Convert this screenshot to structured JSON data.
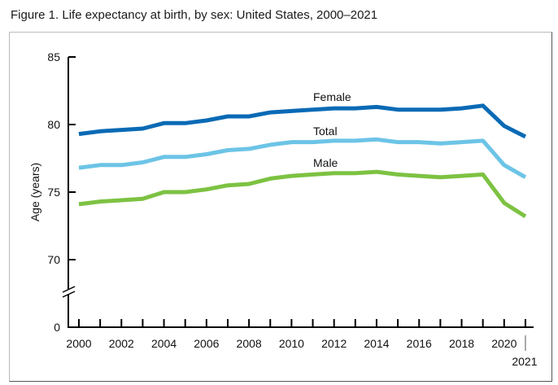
{
  "chart_data": {
    "type": "line",
    "title": "Figure 1. Life expectancy at birth, by sex: United States, 2000–2021",
    "xlabel": "",
    "ylabel": "Age (years)",
    "ylim": [
      70,
      85
    ],
    "y_axis_break": true,
    "y_ticks": [
      "85",
      "80",
      "75",
      "70",
      "0"
    ],
    "y_tick_values": [
      85,
      80,
      75,
      70,
      0
    ],
    "x": [
      2000,
      2001,
      2002,
      2003,
      2004,
      2005,
      2006,
      2007,
      2008,
      2009,
      2010,
      2011,
      2012,
      2013,
      2014,
      2015,
      2016,
      2017,
      2018,
      2019,
      2020,
      2021
    ],
    "x_tick_labels": [
      "2000",
      "2002",
      "2004",
      "2006",
      "2008",
      "2010",
      "2012",
      "2014",
      "2016",
      "2018",
      "2020",
      "2021"
    ],
    "x_tick_label_years": [
      2000,
      2002,
      2004,
      2006,
      2008,
      2010,
      2012,
      2014,
      2016,
      2018,
      2020,
      2021
    ],
    "grid": false,
    "legend": "inline-labels",
    "series": [
      {
        "name": "Female",
        "color": "#0a6ab5",
        "values": [
          79.3,
          79.5,
          79.6,
          79.7,
          80.1,
          80.1,
          80.3,
          80.6,
          80.6,
          80.9,
          81.0,
          81.1,
          81.2,
          81.2,
          81.3,
          81.1,
          81.1,
          81.1,
          81.2,
          81.4,
          79.9,
          79.1
        ]
      },
      {
        "name": "Total",
        "color": "#6cc4e6",
        "values": [
          76.8,
          77.0,
          77.0,
          77.2,
          77.6,
          77.6,
          77.8,
          78.1,
          78.2,
          78.5,
          78.7,
          78.7,
          78.8,
          78.8,
          78.9,
          78.7,
          78.7,
          78.6,
          78.7,
          78.8,
          77.0,
          76.1
        ]
      },
      {
        "name": "Male",
        "color": "#7dc242",
        "values": [
          74.1,
          74.3,
          74.4,
          74.5,
          75.0,
          75.0,
          75.2,
          75.5,
          75.6,
          76.0,
          76.2,
          76.3,
          76.4,
          76.4,
          76.5,
          76.3,
          76.2,
          76.1,
          76.2,
          76.3,
          74.2,
          73.2
        ]
      }
    ]
  }
}
